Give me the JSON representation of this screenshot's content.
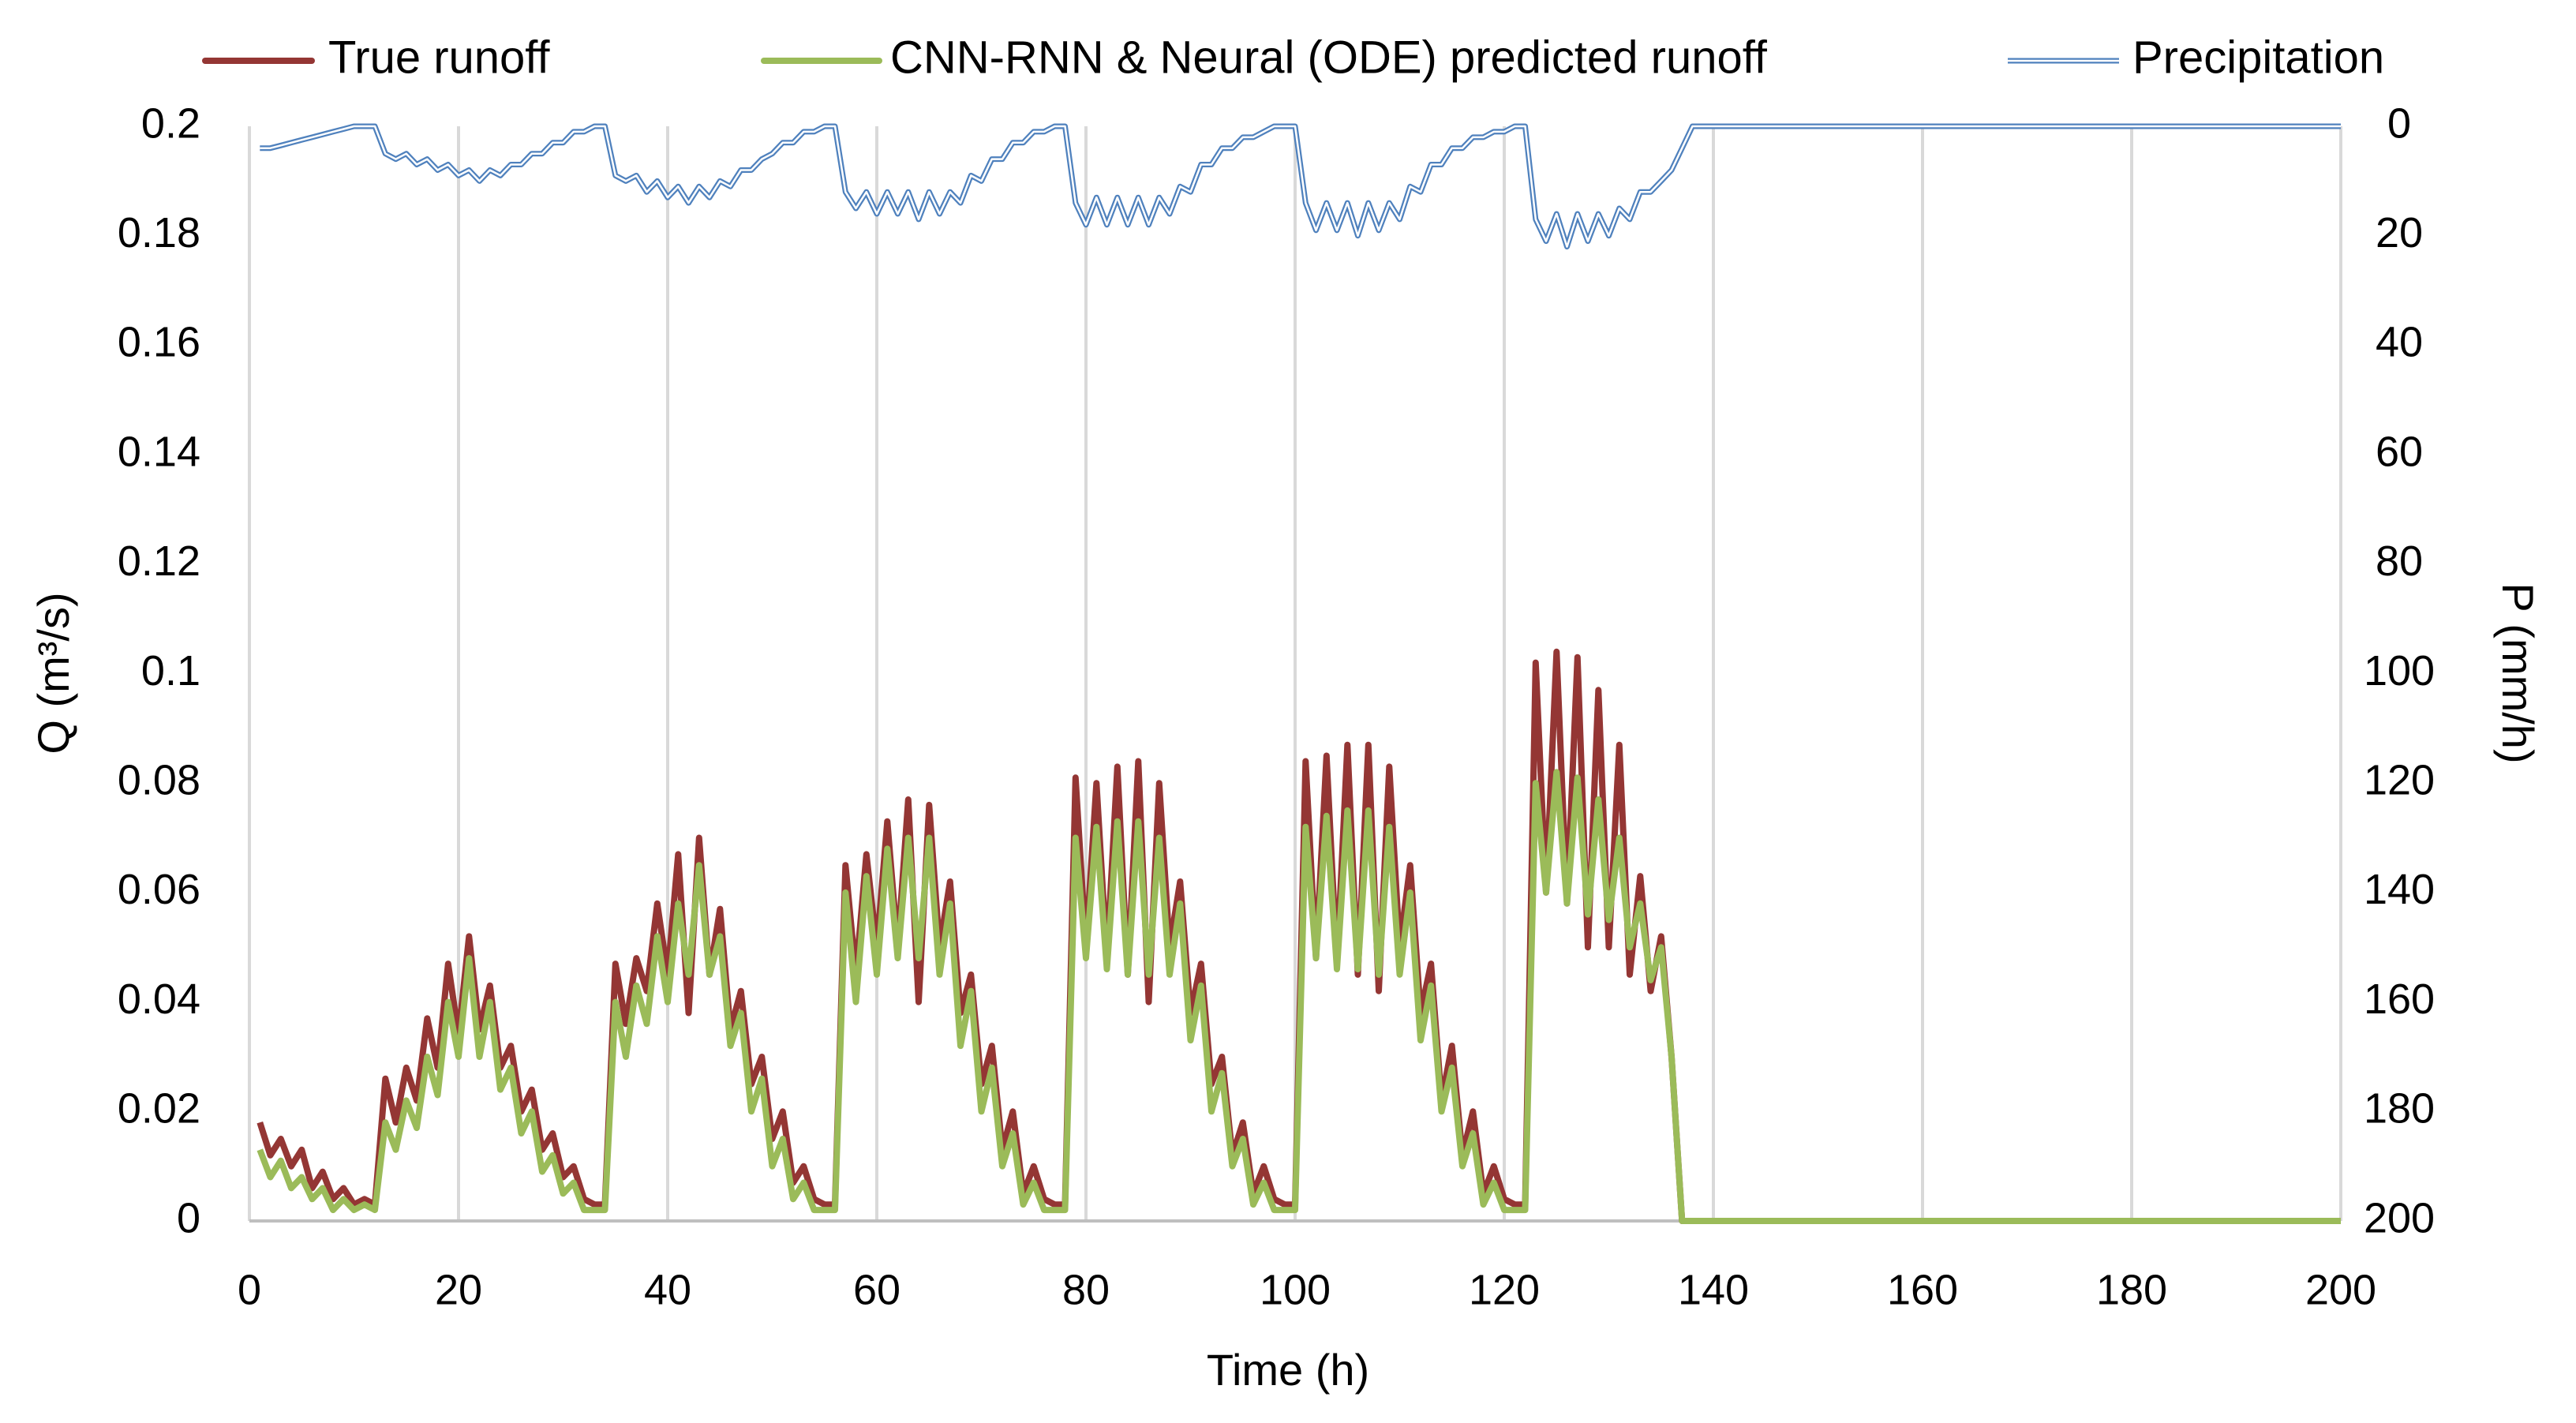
{
  "chart_data": {
    "type": "line",
    "xlabel": "Time (h)",
    "ylabel": "Q (m³/s)",
    "y2label": "P (mm/h)",
    "x": [
      1,
      2,
      3,
      4,
      5,
      6,
      7,
      8,
      9,
      10,
      11,
      12,
      13,
      14,
      15,
      16,
      17,
      18,
      19,
      20,
      21,
      22,
      23,
      24,
      25,
      26,
      27,
      28,
      29,
      30,
      31,
      32,
      33,
      34,
      35,
      36,
      37,
      38,
      39,
      40,
      41,
      42,
      43,
      44,
      45,
      46,
      47,
      48,
      49,
      50,
      51,
      52,
      53,
      54,
      55,
      56,
      57,
      58,
      59,
      60,
      61,
      62,
      63,
      64,
      65,
      66,
      67,
      68,
      69,
      70,
      71,
      72,
      73,
      74,
      75,
      76,
      77,
      78,
      79,
      80,
      81,
      82,
      83,
      84,
      85,
      86,
      87,
      88,
      89,
      90,
      91,
      92,
      93,
      94,
      95,
      96,
      97,
      98,
      99,
      100,
      101,
      102,
      103,
      104,
      105,
      106,
      107,
      108,
      109,
      110,
      111,
      112,
      113,
      114,
      115,
      116,
      117,
      118,
      119,
      120,
      121,
      122,
      123,
      124,
      125,
      126,
      127,
      128,
      129,
      130,
      131,
      132,
      133,
      134,
      135,
      136,
      137,
      138,
      200
    ],
    "series": [
      {
        "name": "True runoff",
        "color": "#943634",
        "axis": "y",
        "values": [
          0.018,
          0.012,
          0.015,
          0.01,
          0.013,
          0.006,
          0.009,
          0.004,
          0.006,
          0.003,
          0.004,
          0.003,
          0.026,
          0.018,
          0.028,
          0.022,
          0.037,
          0.028,
          0.047,
          0.034,
          0.052,
          0.035,
          0.043,
          0.028,
          0.032,
          0.02,
          0.024,
          0.013,
          0.016,
          0.008,
          0.01,
          0.004,
          0.003,
          0.003,
          0.047,
          0.036,
          0.048,
          0.042,
          0.058,
          0.045,
          0.067,
          0.038,
          0.07,
          0.045,
          0.057,
          0.035,
          0.042,
          0.025,
          0.03,
          0.015,
          0.02,
          0.007,
          0.01,
          0.004,
          0.003,
          0.003,
          0.065,
          0.045,
          0.067,
          0.05,
          0.073,
          0.05,
          0.077,
          0.04,
          0.076,
          0.05,
          0.062,
          0.038,
          0.045,
          0.025,
          0.032,
          0.013,
          0.02,
          0.005,
          0.01,
          0.004,
          0.003,
          0.003,
          0.081,
          0.05,
          0.08,
          0.048,
          0.083,
          0.045,
          0.084,
          0.04,
          0.08,
          0.05,
          0.062,
          0.038,
          0.047,
          0.025,
          0.03,
          0.012,
          0.018,
          0.005,
          0.01,
          0.004,
          0.003,
          0.003,
          0.084,
          0.048,
          0.085,
          0.047,
          0.087,
          0.045,
          0.087,
          0.042,
          0.083,
          0.05,
          0.065,
          0.038,
          0.047,
          0.022,
          0.032,
          0.012,
          0.02,
          0.005,
          0.01,
          0.004,
          0.003,
          0.003,
          0.102,
          0.06,
          0.104,
          0.058,
          0.103,
          0.05,
          0.097,
          0.05,
          0.087,
          0.045,
          0.063,
          0.042,
          0.052,
          0.03,
          0,
          0,
          0
        ]
      },
      {
        "name": "CNN-RNN & Neural (ODE) predicted runoff",
        "color": "#9bbb59",
        "axis": "y",
        "values": [
          0.013,
          0.008,
          0.011,
          0.006,
          0.008,
          0.004,
          0.006,
          0.002,
          0.004,
          0.002,
          0.003,
          0.002,
          0.018,
          0.013,
          0.022,
          0.017,
          0.03,
          0.023,
          0.04,
          0.03,
          0.048,
          0.03,
          0.04,
          0.024,
          0.028,
          0.016,
          0.02,
          0.009,
          0.012,
          0.005,
          0.007,
          0.002,
          0.002,
          0.002,
          0.04,
          0.03,
          0.043,
          0.036,
          0.052,
          0.04,
          0.058,
          0.045,
          0.065,
          0.045,
          0.052,
          0.032,
          0.038,
          0.02,
          0.026,
          0.01,
          0.015,
          0.004,
          0.007,
          0.002,
          0.002,
          0.002,
          0.06,
          0.04,
          0.063,
          0.045,
          0.068,
          0.048,
          0.07,
          0.048,
          0.07,
          0.045,
          0.058,
          0.032,
          0.042,
          0.02,
          0.028,
          0.01,
          0.016,
          0.003,
          0.007,
          0.002,
          0.002,
          0.002,
          0.07,
          0.048,
          0.072,
          0.046,
          0.073,
          0.045,
          0.073,
          0.045,
          0.07,
          0.045,
          0.058,
          0.033,
          0.043,
          0.02,
          0.027,
          0.01,
          0.015,
          0.003,
          0.007,
          0.002,
          0.002,
          0.002,
          0.072,
          0.048,
          0.074,
          0.046,
          0.075,
          0.046,
          0.075,
          0.045,
          0.072,
          0.045,
          0.06,
          0.033,
          0.043,
          0.02,
          0.028,
          0.01,
          0.016,
          0.003,
          0.007,
          0.002,
          0.002,
          0.002,
          0.08,
          0.06,
          0.082,
          0.058,
          0.081,
          0.056,
          0.077,
          0.055,
          0.07,
          0.05,
          0.058,
          0.044,
          0.05,
          0.03,
          0,
          0,
          0
        ]
      },
      {
        "name": "Precipitation",
        "color": "#4f81bd",
        "axis": "y2",
        "style": "double",
        "values": [
          4,
          4,
          3.5,
          3,
          2.5,
          2,
          1.5,
          1,
          0.5,
          0,
          0,
          0,
          5,
          6,
          5,
          7,
          6,
          8,
          7,
          9,
          8,
          10,
          8,
          9,
          7,
          7,
          5,
          5,
          3,
          3,
          1,
          1,
          0,
          0,
          9,
          10,
          9,
          12,
          10,
          13,
          11,
          14,
          11,
          13,
          10,
          11,
          8,
          8,
          6,
          5,
          3,
          3,
          1,
          1,
          0,
          0,
          12,
          15,
          12,
          16,
          12,
          16,
          12,
          17,
          12,
          16,
          12,
          14,
          9,
          10,
          6,
          6,
          3,
          3,
          1,
          1,
          0,
          0,
          14,
          18,
          13,
          18,
          13,
          18,
          13,
          18,
          13,
          16,
          11,
          12,
          7,
          7,
          4,
          4,
          2,
          2,
          1,
          0,
          0,
          0,
          14,
          19,
          14,
          19,
          14,
          20,
          14,
          19,
          14,
          17,
          11,
          12,
          7,
          7,
          4,
          4,
          2,
          2,
          1,
          1,
          0,
          0,
          17,
          21,
          16,
          22,
          16,
          21,
          16,
          20,
          15,
          17,
          12,
          12,
          10,
          8,
          4,
          0,
          0
        ]
      }
    ],
    "xlim": [
      0,
      200
    ],
    "xticks": [
      0,
      20,
      40,
      60,
      80,
      100,
      120,
      140,
      160,
      180,
      200
    ],
    "ylim": [
      0,
      0.2
    ],
    "yticks": [
      0,
      0.02,
      0.04,
      0.06,
      0.08,
      0.1,
      0.12,
      0.14,
      0.16,
      0.18,
      0.2
    ],
    "y2lim": [
      0,
      200
    ],
    "y2ticks": [
      0,
      20,
      40,
      60,
      80,
      100,
      120,
      140,
      160,
      180,
      200
    ],
    "y2_inverted": true,
    "grid": "x",
    "legend": "top"
  }
}
